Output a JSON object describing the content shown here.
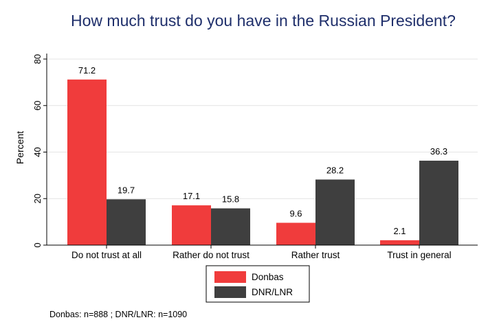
{
  "chart_data": {
    "type": "bar",
    "title": "How much trust do you have in the Russian President?",
    "ylabel": "Percent",
    "xlabel": "",
    "ylim": [
      0,
      80
    ],
    "yticks": [
      0,
      20,
      40,
      60,
      80
    ],
    "grid": true,
    "legend_position": "bottom",
    "categories": [
      "Do not trust at all",
      "Rather do not trust",
      "Rather trust",
      "Trust in general"
    ],
    "series": [
      {
        "name": "Donbas",
        "values": [
          71.2,
          17.1,
          9.6,
          2.1
        ],
        "color": "#f03c3c"
      },
      {
        "name": "DNR/LNR",
        "values": [
          19.7,
          15.8,
          28.2,
          36.3
        ],
        "color": "#3f3f3f"
      }
    ],
    "data_labels": [
      [
        "71.2",
        "17.1",
        "9.6",
        "2.1"
      ],
      [
        "19.7",
        "15.8",
        "28.2",
        "36.3"
      ]
    ],
    "note": "Donbas: n=888 ; DNR/LNR: n=1090"
  }
}
